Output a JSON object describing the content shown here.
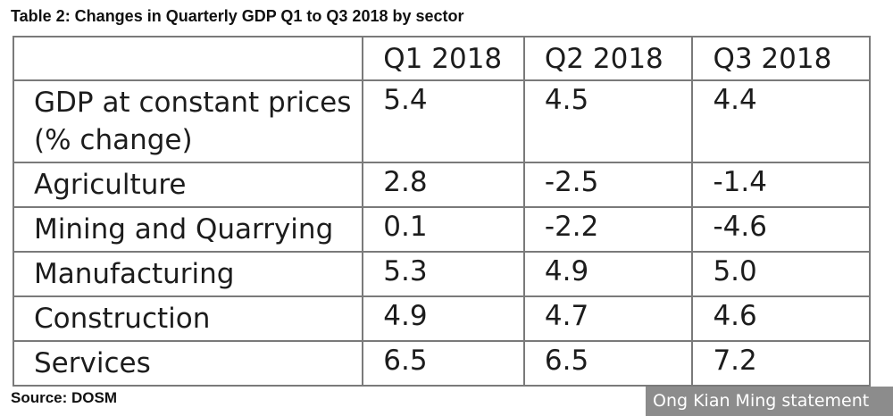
{
  "caption": "Table 2: Changes in Quarterly GDP Q1 to Q3 2018 by sector",
  "table": {
    "headers": [
      "",
      "Q1 2018",
      "Q2 2018",
      "Q3 2018"
    ],
    "rows": [
      {
        "label": "GDP at constant prices (% change)",
        "values": [
          "5.4",
          "4.5",
          "4.4"
        ]
      },
      {
        "label": "Agriculture",
        "values": [
          "2.8",
          "-2.5",
          "-1.4"
        ]
      },
      {
        "label": "Mining and Quarrying",
        "values": [
          "0.1",
          "-2.2",
          "-4.6"
        ]
      },
      {
        "label": "Manufacturing",
        "values": [
          "5.3",
          "4.9",
          "5.0"
        ]
      },
      {
        "label": "Construction",
        "values": [
          "4.9",
          "4.7",
          "4.6"
        ]
      },
      {
        "label": "Services",
        "values": [
          "6.5",
          "6.5",
          "7.2"
        ]
      }
    ]
  },
  "source": "Source: DOSM",
  "credit": "Ong Kian Ming statement"
}
